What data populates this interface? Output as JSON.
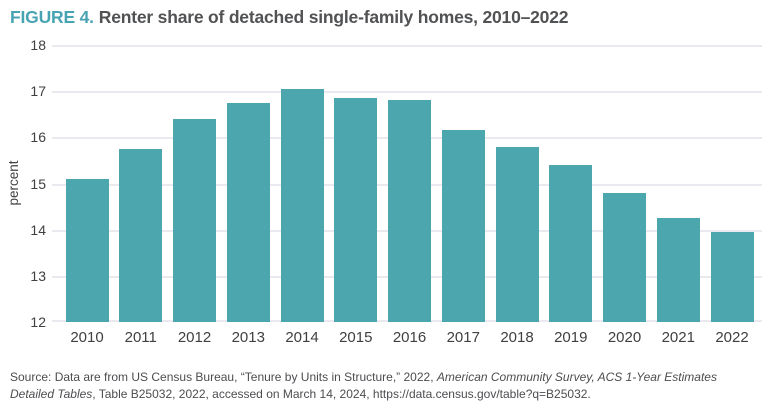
{
  "header": {
    "figure_label": "FIGURE 4.",
    "title": "Renter share of detached single-family homes, 2010–2022"
  },
  "chart_data": {
    "type": "bar",
    "title": "FIGURE 4. Renter share of detached single-family homes, 2010–2022",
    "categories": [
      "2010",
      "2011",
      "2012",
      "2013",
      "2014",
      "2015",
      "2016",
      "2017",
      "2018",
      "2019",
      "2020",
      "2021",
      "2022"
    ],
    "values": [
      15.1,
      15.75,
      16.4,
      16.75,
      17.05,
      16.85,
      16.8,
      16.15,
      15.8,
      15.4,
      14.8,
      14.25,
      13.95
    ],
    "xlabel": "",
    "ylabel": "percent",
    "ylim": [
      12,
      18
    ],
    "ytick_step": 1,
    "yticks": [
      12,
      13,
      14,
      15,
      16,
      17,
      18
    ],
    "grid": true,
    "legend": "none",
    "bar_color": "#4ba6ae"
  },
  "colors": {
    "accent": "#48a3b3",
    "bar": "#4ba6ae",
    "gridline": "#e9e9ef",
    "axis_text": "#3f4042",
    "title_text": "#515254",
    "source_text": "#4c4d50"
  },
  "source": {
    "prefix": "Source: Data are from US Census Bureau, “Tenure by Units in Structure,” 2022, ",
    "italic": "American Community Survey, ACS 1-Year Estimates Detailed Tables",
    "suffix": ", Table B25032, 2022, accessed on March 14, 2024, https://data.census.gov/table?q=B25032."
  }
}
